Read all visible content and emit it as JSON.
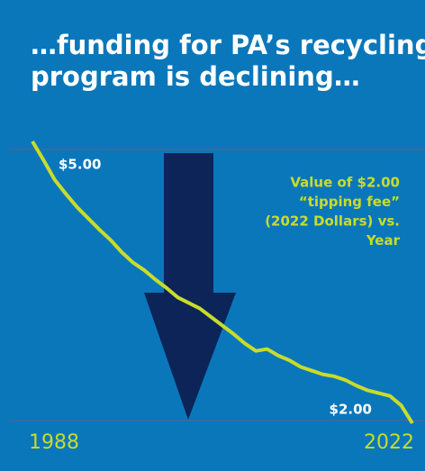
{
  "chart_data": {
    "type": "line",
    "title": [
      "…funding for PA’s recycling",
      "program is declining…"
    ],
    "annotation": [
      "Value of $2.00",
      "“tipping fee”",
      "(2022 Dollars) vs.",
      "Year"
    ],
    "x": [
      1988,
      1989,
      1990,
      1991,
      1992,
      1993,
      1994,
      1995,
      1996,
      1997,
      1998,
      1999,
      2000,
      2001,
      2002,
      2003,
      2004,
      2005,
      2006,
      2007,
      2008,
      2009,
      2010,
      2011,
      2012,
      2013,
      2014,
      2015,
      2016,
      2017,
      2018,
      2019,
      2020,
      2021,
      2022
    ],
    "series": [
      {
        "color": "#c8dc2a",
        "values": [
          5.0,
          4.8,
          4.59,
          4.44,
          4.3,
          4.18,
          4.06,
          3.95,
          3.82,
          3.71,
          3.63,
          3.53,
          3.44,
          3.34,
          3.28,
          3.22,
          3.13,
          3.04,
          2.95,
          2.85,
          2.77,
          2.79,
          2.72,
          2.67,
          2.6,
          2.56,
          2.52,
          2.5,
          2.46,
          2.4,
          2.35,
          2.32,
          2.29,
          2.19,
          2.0
        ],
        "value_labels": [
          "$5.00",
          null,
          null,
          null,
          null,
          null,
          null,
          null,
          null,
          null,
          null,
          null,
          null,
          null,
          null,
          null,
          null,
          null,
          null,
          null,
          null,
          null,
          null,
          null,
          null,
          null,
          null,
          null,
          null,
          null,
          null,
          null,
          null,
          null,
          "$2.00"
        ]
      }
    ],
    "xlim": [
      1988,
      2022
    ],
    "xticks": [
      1988,
      2022
    ],
    "ylim": [
      2,
      5
    ]
  }
}
